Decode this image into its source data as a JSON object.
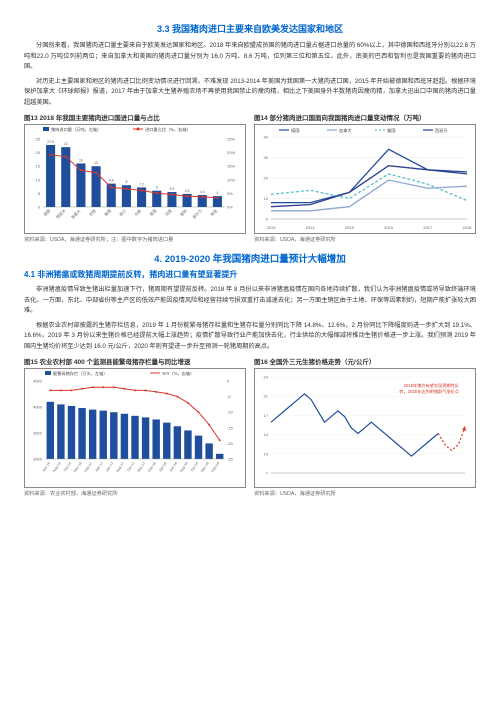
{
  "section3_3": {
    "title": "3.3 我国猪肉进口主要来自欧美发达国家和地区",
    "p1": "分国别来看，我国猪肉进口量主要来自于欧美发达国家和地区。2018 年来自欧盟成员国的猪肉进口量占据进口总量的 60%以上，其中德国和西班牙分别以22.8 万吨和22.0 万吨位列前两位；来自加拿大和美国的猪肉进口量分别为 16.0 万吨、8.6 万吨，位列第三位和第五位。此外，南美的巴西和智利也是我国重要的猪肉进口国。",
    "p2": "对历史上主要国家和地区的猪肉进口比例变动情况进行回溯，不难发现 2013-2014 年美国为我国第一大猪肉进口国，2015 年开始被德国和西班牙赶超。根据环境保护加拿大《环球邮报》报道，2017 年由于加拿大生猪养殖农场不再使用我国禁止的瘦肉精，相比之下美国身外半数猪肉因瘦肉精，加拿大迅出口中国的猪肉进口量超越美国。"
  },
  "section4": {
    "title_num": "4. 2019-2020 年我国猪肉进口量预计大幅增加",
    "sub41": "4.1 非洲猪瘟或致猪周期提前反转，猪肉进口量有望显著提升",
    "p1": "非洲猪瘟疫情导致生猪出栏量加速下行，猪周期有望提前反转。2018 年 8 月份以来非洲猪瘟疫情在国内各地持续扩散，我们认为非洲猪瘟疫情或将导致终端环境去化。一方面，东北、中部省份等主产区的低效产能因疫情风险和经营持续亏损双重打击减速去化；另一方面主销区由于土地、环保等因素制约，短期产能扩张较大困难。",
    "p2": "根据农业农村部披露的生猪存栏信息，2019 年 1 月份能繁母猪存栏量和生猪存栏量分别同比下降 14.8%、12.6%，2 月份同比下降幅度则进一步扩大到 19.1%、16.6%，2019 年 3 月份以来生猪价格已经提前大幅上涨趋势；疫情扩散导致行业产能加快去化，行业供给的大幅缩减将推动生猪价格进一步上涨。我们预测 2019 年国内生猪均价将至少达到 16.0 元/公斤，2020 年则有望进一步升至预测一轮猪周期的高点。"
  },
  "chart13": {
    "title": "图13 2018 年我国主要猪肉进口国进口量与占比",
    "legend": [
      "猪肉进口量（万吨，左轴）",
      "进口量占比（%，右轴）"
    ],
    "categories": [
      "德国",
      "西班牙",
      "加拿大",
      "巴西",
      "美国",
      "荷兰",
      "丹麦",
      "英国",
      "法国",
      "智利",
      "爱尔兰",
      "其他"
    ],
    "values": [
      22.8,
      22.0,
      16.0,
      15.0,
      8.6,
      8.0,
      7.2,
      6.0,
      5.5,
      4.8,
      4.4,
      4.0
    ],
    "pcts": [
      19.2,
      18.5,
      13.5,
      12.6,
      7.2,
      6.7,
      6.1,
      5.1,
      4.6,
      4.0,
      3.7,
      3.4
    ],
    "y1_max": 25,
    "y2_max": 25,
    "bar_color": "#1f4e9c",
    "line_color": "#d9362c",
    "source": "资料来源：USDA，海通证券研究所；注：图中数字为猪肉进口量"
  },
  "chart14": {
    "title": "图14 部分猪肉进口国面向我国猪肉进口量变动情况（万吨）",
    "legend": [
      "德国",
      "加拿大",
      "美国",
      "西班牙"
    ],
    "colors": [
      "#1f4e9c",
      "#8fa6d1",
      "#59c2c9",
      "#2d3e8f"
    ],
    "dashes": [
      false,
      false,
      true,
      false
    ],
    "years": [
      "2013",
      "2014",
      "2015",
      "2016",
      "2017",
      "2018"
    ],
    "series": [
      [
        8,
        8,
        13,
        34,
        24,
        23
      ],
      [
        4,
        4,
        6,
        19,
        15,
        16
      ],
      [
        12,
        14,
        10,
        22,
        17,
        9
      ],
      [
        6,
        7,
        13,
        26,
        24,
        22
      ]
    ],
    "ymax": 40,
    "source": "资料来源：USDA，海通证券研究所"
  },
  "chart15": {
    "title": "图15 农业农村部 400 个监测县能繁母猪存栏量与同比增速",
    "legend": [
      "能繁母猪存栏（万头，左轴）",
      "YoY（%，右轴）"
    ],
    "categories": [
      "Jun-16",
      "Aug-16",
      "Oct-16",
      "Dec-16",
      "Feb-17",
      "Apr-17",
      "Jun-17",
      "Aug-17",
      "Oct-17",
      "Dec-17",
      "Feb-18",
      "Apr-18",
      "Jun-18",
      "Aug-18",
      "Oct-18",
      "Dec-18",
      "Feb-19"
    ],
    "bars": [
      4100,
      4050,
      4020,
      3980,
      3950,
      3930,
      3900,
      3870,
      3830,
      3800,
      3760,
      3700,
      3630,
      3550,
      3450,
      3300,
      3100
    ],
    "yoy": [
      -3,
      -3,
      -3,
      -2.5,
      -2,
      -2,
      -2,
      -2.5,
      -3,
      -3,
      -3.5,
      -4,
      -5,
      -7,
      -10,
      -14,
      -19
    ],
    "y1_min": 3000,
    "y1_max": 4500,
    "y2_min": -25,
    "y2_max": 0,
    "bar_color": "#1f4e9c",
    "line_color": "#d9362c",
    "source": "资料来源：农业农村部，海通证券研究所"
  },
  "chart16": {
    "title": "图16 全国外三元生猪价格走势（元/公斤）",
    "annot": "2018年猪价有望实现周期性反转，2020年达到明猪群气涨价点",
    "x": [
      "1",
      "2",
      "3",
      "4",
      "5",
      "6",
      "7",
      "8",
      "9",
      "10",
      "11",
      "12",
      "13",
      "14",
      "15",
      "16",
      "17",
      "18",
      "19",
      "20",
      "21",
      "22",
      "23",
      "24",
      "25",
      "26",
      "27",
      "28",
      "29",
      "30"
    ],
    "y": [
      16,
      17,
      18,
      19,
      20,
      21,
      20,
      18,
      16,
      17,
      18,
      17,
      15,
      14,
      15,
      16,
      15,
      14,
      13,
      12,
      11,
      10,
      11,
      12,
      13,
      14,
      12,
      11,
      12,
      15
    ],
    "forecast_start_idx": 25,
    "ymin": 7,
    "ymax": 24,
    "ystep": 3.4,
    "color": "#1f4e9c",
    "forecast_color": "#d9362c",
    "source": "资料来源：USDA，海通证券研究所"
  }
}
